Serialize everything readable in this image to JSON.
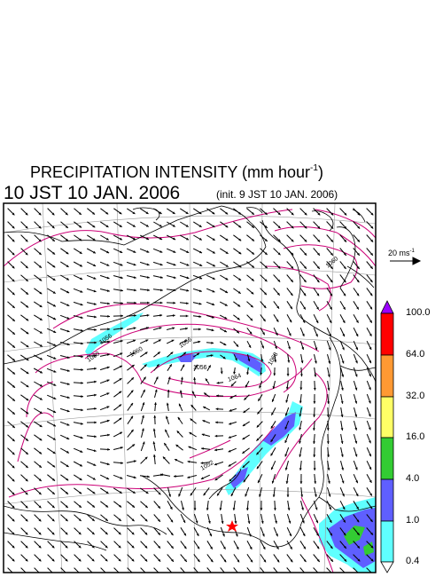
{
  "header": {
    "title_main": "PRECIPITATION INTENSITY (mm hour",
    "title_sup": "-1",
    "title_end": ")",
    "valid_time": "10 JST 10 JAN. 2006",
    "init_time": "(init. 9 JST 10 JAN. 2006)"
  },
  "wind_scale": {
    "label": "20 ms",
    "label_sup": "-1"
  },
  "colorbar": {
    "levels": [
      "100.0",
      "64.0",
      "32.0",
      "16.0",
      "4.0",
      "1.0",
      "0.4"
    ],
    "colors": [
      "#9b00ff",
      "#ff0000",
      "#ff9933",
      "#ffff66",
      "#33cc33",
      "#5f5fff",
      "#5fffff",
      "#ffffff"
    ]
  },
  "isobar_labels": [
    "1060",
    "1056",
    "1060",
    "1056",
    "1056",
    "1064",
    "1068",
    "1052",
    "1060"
  ],
  "colors": {
    "isobar": "#cc0077",
    "coast": "#000000",
    "grid": "#999999",
    "arrow": "#000000",
    "marker": "#ff0000"
  }
}
